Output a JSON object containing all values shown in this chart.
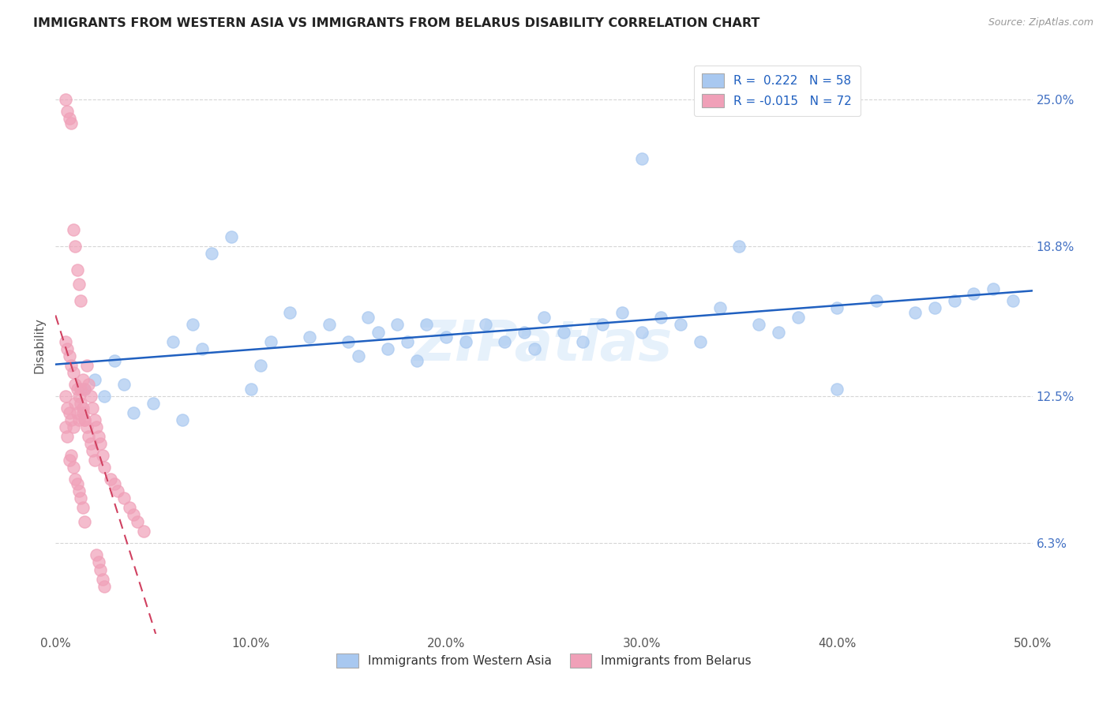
{
  "title": "IMMIGRANTS FROM WESTERN ASIA VS IMMIGRANTS FROM BELARUS DISABILITY CORRELATION CHART",
  "source": "Source: ZipAtlas.com",
  "ylabel": "Disability",
  "ytick_labels": [
    "6.3%",
    "12.5%",
    "18.8%",
    "25.0%"
  ],
  "ytick_values": [
    0.063,
    0.125,
    0.188,
    0.25
  ],
  "xlim": [
    0.0,
    0.5
  ],
  "ylim": [
    0.025,
    0.268
  ],
  "xtick_positions": [
    0.0,
    0.1,
    0.2,
    0.3,
    0.4,
    0.5
  ],
  "xtick_labels": [
    "0.0%",
    "10.0%",
    "20.0%",
    "30.0%",
    "40.0%",
    "50.0%"
  ],
  "legend_r_blue": "R =  0.222",
  "legend_n_blue": "N = 58",
  "legend_r_pink": "R = -0.015",
  "legend_n_pink": "N = 72",
  "legend_label_blue": "Immigrants from Western Asia",
  "legend_label_pink": "Immigrants from Belarus",
  "color_blue": "#A8C8F0",
  "color_pink": "#F0A0B8",
  "color_blue_line": "#2060C0",
  "color_pink_line": "#D04060",
  "watermark": "ZIPatlas",
  "blue_x": [
    0.015,
    0.02,
    0.025,
    0.03,
    0.035,
    0.04,
    0.05,
    0.06,
    0.065,
    0.07,
    0.075,
    0.08,
    0.09,
    0.1,
    0.105,
    0.11,
    0.12,
    0.13,
    0.14,
    0.15,
    0.155,
    0.16,
    0.165,
    0.17,
    0.175,
    0.18,
    0.185,
    0.19,
    0.2,
    0.21,
    0.22,
    0.23,
    0.24,
    0.245,
    0.25,
    0.26,
    0.27,
    0.28,
    0.29,
    0.3,
    0.31,
    0.32,
    0.33,
    0.34,
    0.36,
    0.37,
    0.38,
    0.4,
    0.42,
    0.44,
    0.45,
    0.46,
    0.47,
    0.48,
    0.49,
    0.3,
    0.35,
    0.4
  ],
  "blue_y": [
    0.128,
    0.132,
    0.125,
    0.14,
    0.13,
    0.118,
    0.122,
    0.148,
    0.115,
    0.155,
    0.145,
    0.185,
    0.192,
    0.128,
    0.138,
    0.148,
    0.16,
    0.15,
    0.155,
    0.148,
    0.142,
    0.158,
    0.152,
    0.145,
    0.155,
    0.148,
    0.14,
    0.155,
    0.15,
    0.148,
    0.155,
    0.148,
    0.152,
    0.145,
    0.158,
    0.152,
    0.148,
    0.155,
    0.16,
    0.152,
    0.158,
    0.155,
    0.148,
    0.162,
    0.155,
    0.152,
    0.158,
    0.162,
    0.165,
    0.16,
    0.162,
    0.165,
    0.168,
    0.17,
    0.165,
    0.225,
    0.188,
    0.128
  ],
  "pink_x": [
    0.005,
    0.006,
    0.007,
    0.008,
    0.009,
    0.01,
    0.011,
    0.012,
    0.013,
    0.014,
    0.015,
    0.005,
    0.006,
    0.007,
    0.008,
    0.009,
    0.01,
    0.011,
    0.012,
    0.013,
    0.014,
    0.015,
    0.005,
    0.006,
    0.007,
    0.008,
    0.009,
    0.01,
    0.011,
    0.012,
    0.013,
    0.014,
    0.015,
    0.016,
    0.017,
    0.018,
    0.019,
    0.02,
    0.021,
    0.022,
    0.023,
    0.024,
    0.025,
    0.028,
    0.03,
    0.032,
    0.035,
    0.038,
    0.04,
    0.042,
    0.045,
    0.005,
    0.006,
    0.007,
    0.008,
    0.009,
    0.01,
    0.011,
    0.012,
    0.013,
    0.014,
    0.015,
    0.016,
    0.017,
    0.018,
    0.019,
    0.02,
    0.021,
    0.022,
    0.023,
    0.024,
    0.025
  ],
  "pink_y": [
    0.25,
    0.245,
    0.242,
    0.24,
    0.195,
    0.188,
    0.178,
    0.172,
    0.165,
    0.132,
    0.128,
    0.125,
    0.12,
    0.118,
    0.115,
    0.112,
    0.122,
    0.118,
    0.115,
    0.128,
    0.12,
    0.115,
    0.112,
    0.108,
    0.098,
    0.1,
    0.095,
    0.09,
    0.088,
    0.085,
    0.082,
    0.078,
    0.072,
    0.138,
    0.13,
    0.125,
    0.12,
    0.115,
    0.112,
    0.108,
    0.105,
    0.1,
    0.095,
    0.09,
    0.088,
    0.085,
    0.082,
    0.078,
    0.075,
    0.072,
    0.068,
    0.148,
    0.145,
    0.142,
    0.138,
    0.135,
    0.13,
    0.128,
    0.125,
    0.122,
    0.118,
    0.115,
    0.112,
    0.108,
    0.105,
    0.102,
    0.098,
    0.058,
    0.055,
    0.052,
    0.048,
    0.045
  ]
}
